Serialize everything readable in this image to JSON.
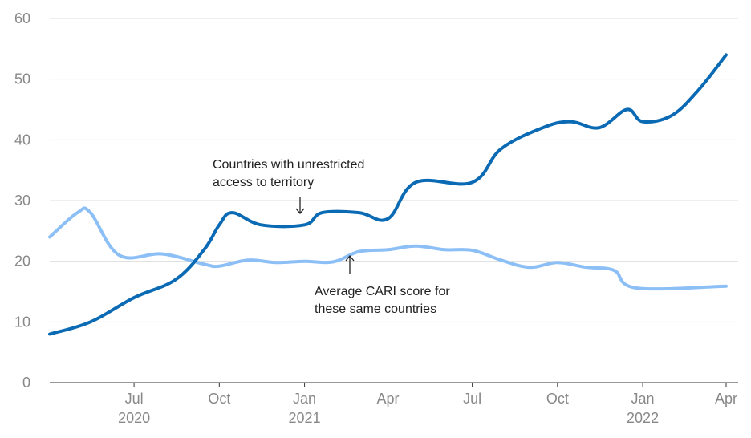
{
  "chart_data": {
    "type": "line",
    "title": "",
    "xlabel": "",
    "ylabel": "",
    "ylim": [
      0,
      60
    ],
    "y_ticks": [
      0,
      10,
      20,
      30,
      40,
      50,
      60
    ],
    "grid": true,
    "x_ticks": [
      {
        "date": "2020-07-01",
        "month": "Jul",
        "year": "2020"
      },
      {
        "date": "2020-10-01",
        "month": "Oct",
        "year": ""
      },
      {
        "date": "2021-01-01",
        "month": "Jan",
        "year": "2021"
      },
      {
        "date": "2021-04-01",
        "month": "Apr",
        "year": ""
      },
      {
        "date": "2021-07-01",
        "month": "Jul",
        "year": ""
      },
      {
        "date": "2021-10-01",
        "month": "Oct",
        "year": ""
      },
      {
        "date": "2022-01-01",
        "month": "Jan",
        "year": "2022"
      },
      {
        "date": "2022-04-01",
        "month": "Apr",
        "year": ""
      }
    ],
    "series": [
      {
        "name": "",
        "color": "#0a6ab4",
        "points": [
          {
            "x": "2020-04-01",
            "y": 8
          },
          {
            "x": "2020-05-15",
            "y": 10
          },
          {
            "x": "2020-07-01",
            "y": 14
          },
          {
            "x": "2020-08-15",
            "y": 17
          },
          {
            "x": "2020-09-15",
            "y": 22
          },
          {
            "x": "2020-10-01",
            "y": 26
          },
          {
            "x": "2020-10-15",
            "y": 28
          },
          {
            "x": "2020-11-15",
            "y": 26
          },
          {
            "x": "2021-01-01",
            "y": 26
          },
          {
            "x": "2021-01-20",
            "y": 28
          },
          {
            "x": "2021-03-01",
            "y": 28
          },
          {
            "x": "2021-04-01",
            "y": 27
          },
          {
            "x": "2021-05-01",
            "y": 33
          },
          {
            "x": "2021-07-01",
            "y": 33
          },
          {
            "x": "2021-08-01",
            "y": 38.5
          },
          {
            "x": "2021-09-15",
            "y": 42
          },
          {
            "x": "2021-10-15",
            "y": 43
          },
          {
            "x": "2021-11-15",
            "y": 42
          },
          {
            "x": "2021-12-15",
            "y": 45
          },
          {
            "x": "2022-01-01",
            "y": 43
          },
          {
            "x": "2022-02-01",
            "y": 44
          },
          {
            "x": "2022-03-01",
            "y": 48
          },
          {
            "x": "2022-04-01",
            "y": 54
          }
        ]
      },
      {
        "name": "",
        "color": "#8cbff5",
        "points": [
          {
            "x": "2020-04-01",
            "y": 24
          },
          {
            "x": "2020-05-01",
            "y": 28
          },
          {
            "x": "2020-05-15",
            "y": 28
          },
          {
            "x": "2020-06-15",
            "y": 21
          },
          {
            "x": "2020-08-01",
            "y": 21.2
          },
          {
            "x": "2020-09-15",
            "y": 19.5
          },
          {
            "x": "2020-10-01",
            "y": 19.2
          },
          {
            "x": "2020-11-01",
            "y": 20.2
          },
          {
            "x": "2020-12-01",
            "y": 19.8
          },
          {
            "x": "2021-01-01",
            "y": 20
          },
          {
            "x": "2021-02-01",
            "y": 19.9
          },
          {
            "x": "2021-03-01",
            "y": 21.6
          },
          {
            "x": "2021-04-01",
            "y": 21.9
          },
          {
            "x": "2021-05-01",
            "y": 22.5
          },
          {
            "x": "2021-06-01",
            "y": 21.9
          },
          {
            "x": "2021-07-01",
            "y": 21.8
          },
          {
            "x": "2021-08-01",
            "y": 20.2
          },
          {
            "x": "2021-09-01",
            "y": 19
          },
          {
            "x": "2021-10-01",
            "y": 19.8
          },
          {
            "x": "2021-11-01",
            "y": 19
          },
          {
            "x": "2021-12-01",
            "y": 18.5
          },
          {
            "x": "2021-12-25",
            "y": 15.6
          },
          {
            "x": "2022-04-01",
            "y": 15.9
          }
        ]
      }
    ],
    "annotations": [
      {
        "id": "unrestricted",
        "lines": [
          "Countries with unrestricted",
          "access to territory"
        ],
        "arrow": "down"
      },
      {
        "id": "cari",
        "lines": [
          "Average CARI score for",
          "these same countries"
        ],
        "arrow": "up"
      }
    ]
  }
}
